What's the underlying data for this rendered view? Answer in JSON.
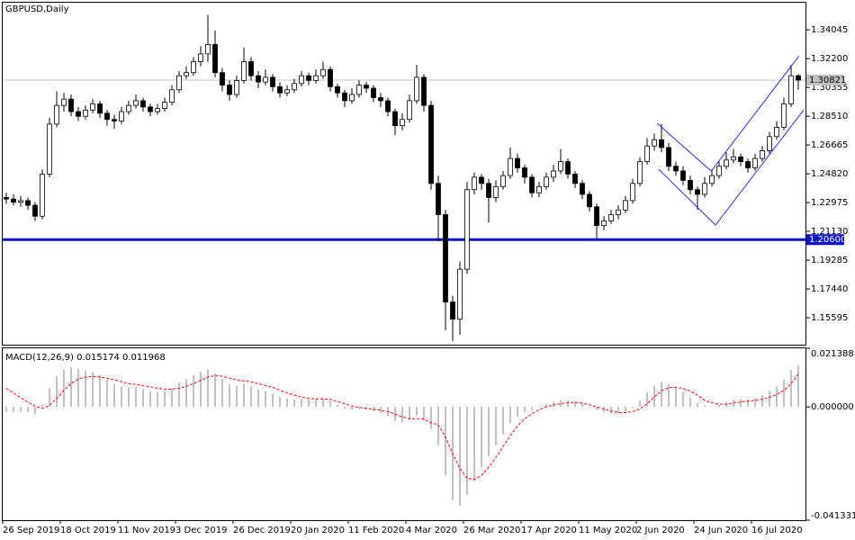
{
  "chart_data": [
    {
      "type": "candlestick",
      "title": "GBPUSD,Daily",
      "categories": [
        "26 Sep 2019",
        null,
        null,
        null,
        null,
        null,
        null,
        null,
        "18 Oct 2019",
        null,
        null,
        null,
        null,
        null,
        null,
        null,
        "11 Nov 2019",
        null,
        null,
        null,
        null,
        null,
        null,
        null,
        "3 Dec 2019",
        null,
        null,
        null,
        null,
        null,
        null,
        null,
        "26 Dec 2019",
        null,
        null,
        null,
        null,
        null,
        null,
        null,
        "20 Jan 2020",
        null,
        null,
        null,
        null,
        null,
        null,
        null,
        "11 Feb 2020",
        null,
        null,
        null,
        null,
        null,
        null,
        null,
        "4 Mar 2020",
        null,
        null,
        null,
        null,
        null,
        null,
        null,
        "26 Mar 2020",
        null,
        null,
        null,
        null,
        null,
        null,
        null,
        "17 Apr 2020",
        null,
        null,
        null,
        null,
        null,
        null,
        null,
        "11 May 2020",
        null,
        null,
        null,
        null,
        null,
        null,
        null,
        "2 Jun 2020",
        null,
        null,
        null,
        null,
        null,
        null,
        null,
        "24 Jun 2020",
        null,
        null,
        null,
        null,
        null,
        null,
        null,
        "16 Jul 2020",
        null,
        null,
        null,
        null,
        null,
        null
      ],
      "open": [
        1.233,
        1.232,
        1.23,
        1.231,
        1.228,
        1.221,
        1.248,
        1.28,
        1.292,
        1.296,
        1.288,
        1.285,
        1.289,
        1.293,
        1.287,
        1.283,
        1.282,
        1.288,
        1.292,
        1.295,
        1.291,
        1.288,
        1.29,
        1.294,
        1.302,
        1.311,
        1.313,
        1.32,
        1.325,
        1.331,
        1.313,
        1.305,
        1.299,
        1.308,
        1.32,
        1.311,
        1.307,
        1.31,
        1.304,
        1.3,
        1.302,
        1.306,
        1.311,
        1.308,
        1.311,
        1.315,
        1.304,
        1.3,
        1.295,
        1.299,
        1.305,
        1.303,
        1.297,
        1.295,
        1.288,
        1.279,
        1.283,
        1.295,
        1.31,
        1.292,
        1.242,
        1.222,
        1.166,
        1.155,
        1.187,
        1.238,
        1.246,
        1.242,
        1.233,
        1.24,
        1.247,
        1.258,
        1.252,
        1.246,
        1.236,
        1.24,
        1.246,
        1.25,
        1.256,
        1.248,
        1.242,
        1.235,
        1.227,
        1.215,
        1.218,
        1.222,
        1.225,
        1.231,
        1.242,
        1.256,
        1.266,
        1.27,
        1.265,
        1.253,
        1.25,
        1.244,
        1.238,
        1.235,
        1.242,
        1.247,
        1.253,
        1.257,
        1.259,
        1.256,
        1.252,
        1.258,
        1.263,
        1.272,
        1.278,
        1.293,
        1.311
      ],
      "high": [
        1.236,
        1.235,
        1.234,
        1.233,
        1.23,
        1.251,
        1.284,
        1.301,
        1.3,
        1.299,
        1.291,
        1.292,
        1.296,
        1.295,
        1.289,
        1.286,
        1.291,
        1.295,
        1.299,
        1.297,
        1.293,
        1.293,
        1.297,
        1.305,
        1.314,
        1.317,
        1.323,
        1.33,
        1.35,
        1.34,
        1.316,
        1.308,
        1.311,
        1.329,
        1.323,
        1.314,
        1.315,
        1.312,
        1.307,
        1.305,
        1.309,
        1.314,
        1.313,
        1.315,
        1.32,
        1.317,
        1.306,
        1.302,
        1.303,
        1.308,
        1.307,
        1.305,
        1.3,
        1.297,
        1.29,
        1.287,
        1.299,
        1.318,
        1.312,
        1.295,
        1.247,
        1.225,
        1.17,
        1.192,
        1.243,
        1.249,
        1.248,
        1.245,
        1.244,
        1.25,
        1.265,
        1.261,
        1.254,
        1.248,
        1.243,
        1.249,
        1.254,
        1.264,
        1.258,
        1.25,
        1.244,
        1.237,
        1.229,
        1.221,
        1.225,
        1.228,
        1.234,
        1.245,
        1.259,
        1.271,
        1.274,
        1.28,
        1.268,
        1.256,
        1.253,
        1.247,
        1.24,
        1.246,
        1.251,
        1.256,
        1.262,
        1.264,
        1.261,
        1.258,
        1.261,
        1.266,
        1.275,
        1.282,
        1.297,
        1.318,
        1.312
      ],
      "low": [
        1.229,
        1.228,
        1.227,
        1.225,
        1.218,
        1.219,
        1.246,
        1.278,
        1.288,
        1.285,
        1.282,
        1.283,
        1.287,
        1.284,
        1.279,
        1.277,
        1.28,
        1.286,
        1.29,
        1.288,
        1.285,
        1.286,
        1.288,
        1.292,
        1.3,
        1.309,
        1.311,
        1.317,
        1.32,
        1.31,
        1.301,
        1.295,
        1.297,
        1.306,
        1.308,
        1.303,
        1.305,
        1.301,
        1.297,
        1.298,
        1.3,
        1.304,
        1.305,
        1.306,
        1.309,
        1.301,
        1.297,
        1.291,
        1.293,
        1.297,
        1.3,
        1.294,
        1.291,
        1.285,
        1.273,
        1.276,
        1.281,
        1.293,
        1.288,
        1.238,
        1.205,
        1.148,
        1.141,
        1.145,
        1.184,
        1.235,
        1.238,
        1.217,
        1.23,
        1.238,
        1.245,
        1.249,
        1.242,
        1.233,
        1.233,
        1.238,
        1.243,
        1.248,
        1.245,
        1.239,
        1.232,
        1.224,
        1.206,
        1.212,
        1.216,
        1.219,
        1.223,
        1.229,
        1.24,
        1.254,
        1.263,
        1.262,
        1.25,
        1.247,
        1.241,
        1.235,
        1.225,
        1.233,
        1.24,
        1.245,
        1.251,
        1.255,
        1.253,
        1.249,
        1.25,
        1.256,
        1.261,
        1.27,
        1.276,
        1.291,
        1.302
      ],
      "close": [
        1.232,
        1.23,
        1.231,
        1.228,
        1.221,
        1.248,
        1.28,
        1.292,
        1.296,
        1.288,
        1.285,
        1.289,
        1.293,
        1.287,
        1.283,
        1.282,
        1.288,
        1.292,
        1.295,
        1.291,
        1.288,
        1.29,
        1.294,
        1.302,
        1.311,
        1.313,
        1.32,
        1.325,
        1.331,
        1.313,
        1.305,
        1.299,
        1.308,
        1.32,
        1.311,
        1.307,
        1.31,
        1.304,
        1.3,
        1.302,
        1.306,
        1.311,
        1.308,
        1.311,
        1.315,
        1.304,
        1.3,
        1.295,
        1.299,
        1.305,
        1.303,
        1.297,
        1.295,
        1.288,
        1.279,
        1.283,
        1.295,
        1.31,
        1.292,
        1.242,
        1.222,
        1.166,
        1.155,
        1.187,
        1.238,
        1.246,
        1.242,
        1.233,
        1.24,
        1.247,
        1.258,
        1.252,
        1.246,
        1.236,
        1.24,
        1.246,
        1.25,
        1.256,
        1.248,
        1.242,
        1.235,
        1.227,
        1.215,
        1.218,
        1.222,
        1.225,
        1.231,
        1.242,
        1.256,
        1.266,
        1.27,
        1.265,
        1.253,
        1.25,
        1.244,
        1.238,
        1.235,
        1.242,
        1.247,
        1.253,
        1.257,
        1.259,
        1.256,
        1.252,
        1.258,
        1.263,
        1.272,
        1.278,
        1.293,
        1.311,
        1.30821
      ],
      "up_color": "#ffffff",
      "down_color": "#000000",
      "ylim": [
        1.1381,
        1.3578
      ],
      "yticks": [
        1.34045,
        {
          "value": 1.322,
          "label": "1.32200"
        },
        1.30355,
        {
          "value": 1.2851,
          "label": "1.28510"
        },
        1.26665,
        {
          "value": 1.2482,
          "label": "1.24820"
        },
        1.22975,
        {
          "value": 1.2113,
          "label": "1.21130"
        },
        1.19285,
        {
          "value": 1.1744,
          "label": "1.17440"
        },
        1.15595
      ],
      "hlines": [
        {
          "value": 1.206,
          "label": "1.20600",
          "color": "#0a14d0"
        }
      ],
      "bid": {
        "value": 1.30821,
        "label": "1.30821",
        "color": "#c0c0c0"
      },
      "trendlines": [
        {
          "x": [
            90.4,
            97.9
          ],
          "y": [
            1.2805,
            1.2499
          ],
          "color": "#2030e0"
        },
        {
          "x": [
            90.6,
            98.5
          ],
          "y": [
            1.2511,
            1.2153
          ],
          "color": "#2030e0"
        },
        {
          "x": [
            97.9,
            110.1
          ],
          "y": [
            1.2499,
            1.3237
          ],
          "color": "#2030e0"
        },
        {
          "x": [
            98.5,
            110.75
          ],
          "y": [
            1.2153,
            1.2891
          ],
          "color": "#2030e0"
        }
      ]
    },
    {
      "type": "macd",
      "title": "MACD(12,26,9) 0.015174 0.011968",
      "histogram": [
        -0.0017,
        -0.002,
        -0.0017,
        -0.002,
        -0.0026,
        0.0009,
        0.0068,
        0.0111,
        0.0136,
        0.0145,
        0.0139,
        0.0133,
        0.0128,
        0.0116,
        0.0099,
        0.0082,
        0.0075,
        0.0071,
        0.0073,
        0.0065,
        0.0058,
        0.0054,
        0.0056,
        0.0068,
        0.0088,
        0.0102,
        0.0116,
        0.0128,
        0.0136,
        0.0122,
        0.0102,
        0.0082,
        0.0077,
        0.0085,
        0.0077,
        0.0065,
        0.0058,
        0.0048,
        0.0037,
        0.0031,
        0.0027,
        0.0031,
        0.0027,
        0.0029,
        0.0032,
        0.002,
        0.0007,
        -0.0007,
        -0.001,
        -0.0007,
        -0.0009,
        -0.0015,
        -0.0022,
        -0.0034,
        -0.0051,
        -0.0056,
        -0.0048,
        -0.0031,
        -0.0051,
        -0.008,
        -0.014,
        -0.025,
        -0.034,
        -0.036,
        -0.032,
        -0.027,
        -0.022,
        -0.018,
        -0.014,
        -0.01,
        -0.006,
        -0.0035,
        -0.002,
        -0.0012,
        0.0002,
        0.001,
        0.0018,
        0.0025,
        0.0024,
        0.002,
        0.0012,
        0.0002,
        -0.0012,
        -0.002,
        -0.0024,
        -0.0024,
        -0.0018,
        -0.0004,
        0.0022,
        0.0054,
        0.0078,
        0.009,
        0.0084,
        0.0072,
        0.0054,
        0.0034,
        0.0014,
        0.0005,
        0.0002,
        0.0008,
        0.0018,
        0.0026,
        0.0028,
        0.0027,
        0.0032,
        0.0042,
        0.0058,
        0.0075,
        0.01,
        0.0135,
        0.015174
      ],
      "signal": [
        0.0068,
        0.0051,
        0.0034,
        0.0017,
        0.0003,
        -0.0005,
        0.0005,
        0.0031,
        0.006,
        0.0085,
        0.0102,
        0.0109,
        0.0111,
        0.0109,
        0.0105,
        0.0099,
        0.0092,
        0.0085,
        0.0082,
        0.0078,
        0.0073,
        0.0068,
        0.0065,
        0.0065,
        0.0068,
        0.0075,
        0.0085,
        0.0097,
        0.0109,
        0.0114,
        0.0112,
        0.0105,
        0.0099,
        0.0095,
        0.0092,
        0.0085,
        0.0078,
        0.0071,
        0.0061,
        0.0051,
        0.0043,
        0.0036,
        0.0031,
        0.0029,
        0.0029,
        0.0027,
        0.002,
        0.0012,
        0.0003,
        -0.0002,
        -0.0005,
        -0.0009,
        -0.0012,
        -0.0017,
        -0.0026,
        -0.0036,
        -0.0043,
        -0.0043,
        -0.0044,
        -0.0058,
        -0.0065,
        -0.011,
        -0.017,
        -0.0225,
        -0.026,
        -0.0265,
        -0.025,
        -0.022,
        -0.0185,
        -0.0145,
        -0.0105,
        -0.007,
        -0.0043,
        -0.0025,
        -0.001,
        0.0,
        0.0007,
        0.0012,
        0.0015,
        0.0016,
        0.0014,
        0.0008,
        0.0,
        -0.0008,
        -0.0015,
        -0.002,
        -0.0021,
        -0.0017,
        -0.0008,
        0.0012,
        0.0036,
        0.0058,
        0.007,
        0.0072,
        0.0067,
        0.0058,
        0.0043,
        0.0024,
        0.0015,
        0.001,
        0.001,
        0.0014,
        0.0018,
        0.0021,
        0.0024,
        0.0028,
        0.0035,
        0.0045,
        0.006,
        0.0085,
        0.011968
      ],
      "histogram_color": "#c0c0c0",
      "signal_color": "#ff0000",
      "ylim": [
        -0.041331,
        0.021388
      ],
      "yticks": [
        0.021388,
        {
          "value": 0,
          "label": "0.000000"
        },
        -0.041331
      ]
    }
  ]
}
